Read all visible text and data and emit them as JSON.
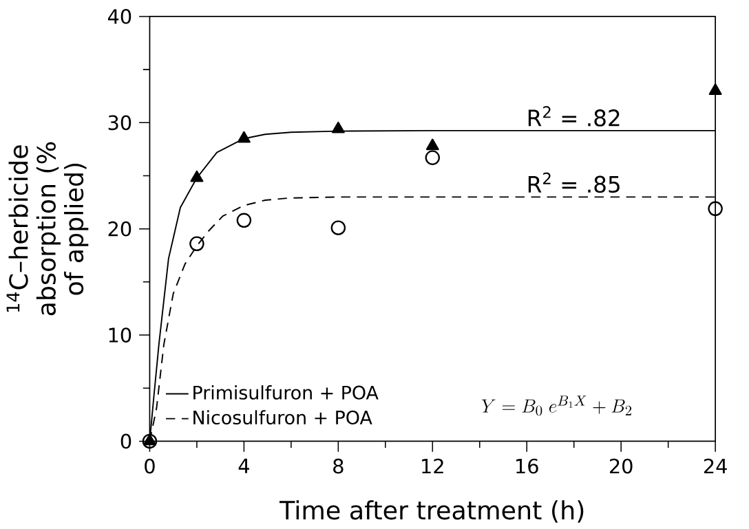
{
  "chart_data": {
    "type": "line",
    "xlabel": "Time after treatment (h)",
    "ylabel": "$^{14}$C–herbicide absorption (% of applied)",
    "xlim": [
      0,
      24
    ],
    "ylim": [
      0,
      40
    ],
    "xticks": [
      0,
      4,
      8,
      12,
      16,
      20,
      24
    ],
    "yticks": [
      0,
      10,
      20,
      30,
      40
    ],
    "grid": false,
    "legend": "bottom left",
    "series": [
      {
        "name": "Primisulfuron + POA",
        "color": "#000000",
        "line_style": "solid",
        "marker": "none",
        "x": [
          0,
          0.18,
          0.39,
          0.8,
          1.3,
          2,
          2.85,
          4,
          4.9,
          6,
          8,
          12,
          16,
          20,
          24
        ],
        "values": [
          0,
          4.3,
          9.1,
          17.2,
          22.0,
          24.8,
          27.2,
          28.5,
          28.9,
          29.1,
          29.2,
          29.25,
          29.25,
          29.25,
          29.25
        ]
      },
      {
        "name": "Nicosulfuron + POA",
        "color": "#000000",
        "line_style": "dashed",
        "marker": "none",
        "x": [
          0,
          0.29,
          0.6,
          1.0,
          1.5,
          2,
          2.5,
          3.1,
          4,
          4.9,
          5.9,
          8,
          12,
          16,
          20,
          24
        ],
        "values": [
          0,
          3.1,
          9.1,
          13.9,
          16.7,
          18.4,
          19.8,
          21.2,
          22.2,
          22.7,
          22.9,
          23.0,
          23.0,
          23.0,
          23.0,
          23.0
        ]
      },
      {
        "type": "scatter",
        "color": "#000000",
        "marker": "circle",
        "x": [
          0,
          2,
          4,
          8,
          12,
          24
        ],
        "values": [
          0,
          18.6,
          20.8,
          20.1,
          26.7,
          21.9
        ]
      },
      {
        "type": "scatter",
        "color": "#000000",
        "marker": "triangle",
        "x": [
          0,
          2,
          4,
          8,
          12,
          24
        ],
        "values": [
          0,
          24.8,
          28.5,
          29.4,
          27.8,
          33.0
        ]
      }
    ],
    "annotations": [
      {
        "text": "R$^{2}$ = .82",
        "x": 18,
        "y": 29.25
      },
      {
        "text": "R$^{2}$ = .85",
        "x": 18,
        "y": 23.0
      },
      "Y = B_0\\;e^{B_1X} + B_2"
    ]
  }
}
